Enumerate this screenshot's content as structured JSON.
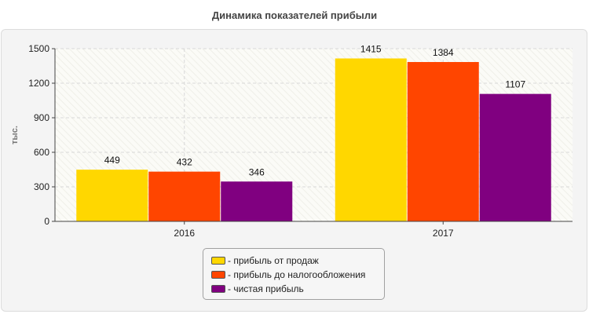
{
  "chart_data": {
    "type": "bar",
    "title": "Динамика показателей прибыли",
    "ylabel": "тыс.",
    "xlabel": "",
    "categories": [
      "2016",
      "2017"
    ],
    "ylim": [
      0,
      1500
    ],
    "yticks": [
      0,
      300,
      600,
      900,
      1200,
      1500
    ],
    "grid": true,
    "legend_position": "bottom",
    "series": [
      {
        "name": "- прибыль от продаж",
        "values": [
          449,
          1415
        ],
        "color": "#FFD700"
      },
      {
        "name": "- прибыль до налогообложения",
        "values": [
          432,
          1384
        ],
        "color": "#FF4500"
      },
      {
        "name": "- чистая прибыль",
        "values": [
          346,
          1107
        ],
        "color": "#800080"
      }
    ]
  }
}
